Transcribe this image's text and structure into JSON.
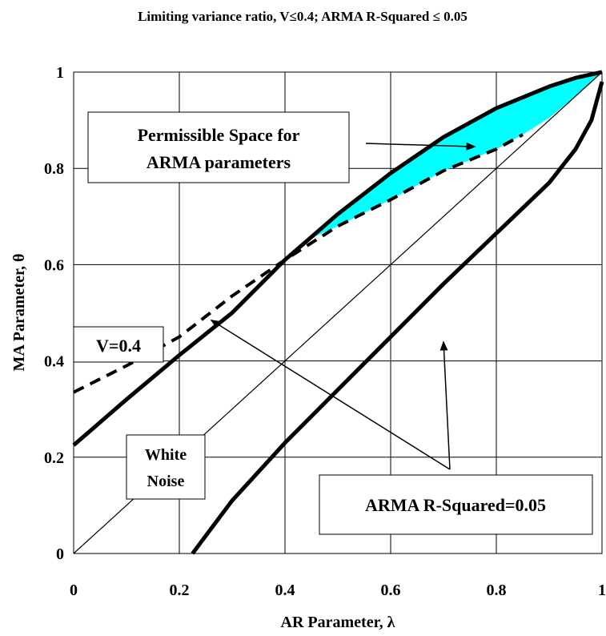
{
  "chart_data": {
    "type": "line",
    "title": "Limiting variance ratio, V≤0.4; ARMA R-Squared ≤ 0.05",
    "xlabel": "AR Parameter, λ",
    "ylabel": "MA Parameter, θ",
    "xlim": [
      0,
      1
    ],
    "ylim": [
      0,
      1
    ],
    "x_ticks": [
      "0",
      "0.2",
      "0.4",
      "0.6",
      "0.8",
      "1"
    ],
    "y_ticks": [
      "0",
      "0.2",
      "0.4",
      "0.6",
      "0.8",
      "1"
    ],
    "grid": true,
    "legend": "none",
    "colors": {
      "region": "#00FFFF",
      "line": "#000000"
    },
    "series": [
      {
        "key": "upper_rsq",
        "style": "thick-solid",
        "x": [
          0,
          0.1,
          0.2,
          0.3,
          0.4,
          0.5,
          0.6,
          0.7,
          0.8,
          0.9,
          0.95,
          1.0
        ],
        "y": [
          0.225,
          0.32,
          0.412,
          0.5,
          0.61,
          0.705,
          0.79,
          0.865,
          0.925,
          0.97,
          0.988,
          1.0
        ]
      },
      {
        "key": "lower_rsq",
        "style": "thick-solid",
        "x": [
          0.225,
          0.3,
          0.4,
          0.5,
          0.6,
          0.7,
          0.8,
          0.9,
          0.95,
          0.98,
          1.0
        ],
        "y": [
          0,
          0.11,
          0.23,
          0.34,
          0.45,
          0.56,
          0.665,
          0.77,
          0.84,
          0.9,
          0.98
        ]
      },
      {
        "key": "white_noise",
        "style": "thin-solid",
        "x": [
          0,
          1
        ],
        "y": [
          0,
          1
        ]
      },
      {
        "key": "variance_ratio",
        "style": "dashed",
        "x": [
          0,
          0.1,
          0.2,
          0.3,
          0.4,
          0.5,
          0.6,
          0.7,
          0.8,
          0.85
        ],
        "y": [
          0.335,
          0.39,
          0.45,
          0.535,
          0.61,
          0.68,
          0.735,
          0.795,
          0.84,
          0.87
        ]
      }
    ],
    "shaded_region": {
      "upper": {
        "x": [
          0.45,
          0.5,
          0.6,
          0.7,
          0.8,
          0.9,
          0.95,
          1.0
        ],
        "y": [
          0.66,
          0.705,
          0.79,
          0.865,
          0.925,
          0.97,
          0.988,
          1.0
        ]
      },
      "lower": {
        "x": [
          1.0,
          0.95,
          0.9,
          0.85,
          0.8,
          0.7,
          0.6,
          0.5,
          0.45
        ],
        "y": [
          1.0,
          0.95,
          0.905,
          0.87,
          0.84,
          0.795,
          0.735,
          0.68,
          0.655
        ]
      }
    },
    "annotations": [
      {
        "key": "permissible",
        "lines": [
          "Permissible Space for",
          "ARMA parameters"
        ],
        "arrow_to": [
          0.76,
          0.845
        ]
      },
      {
        "key": "v04",
        "lines": [
          "V=0.4"
        ]
      },
      {
        "key": "white_noise",
        "lines": [
          "White",
          "Noise"
        ]
      },
      {
        "key": "rsq",
        "lines": [
          "ARMA R-Squared=0.05"
        ],
        "arrows_to": [
          [
            0.26,
            0.485
          ],
          [
            0.7,
            0.44
          ]
        ]
      }
    ]
  }
}
